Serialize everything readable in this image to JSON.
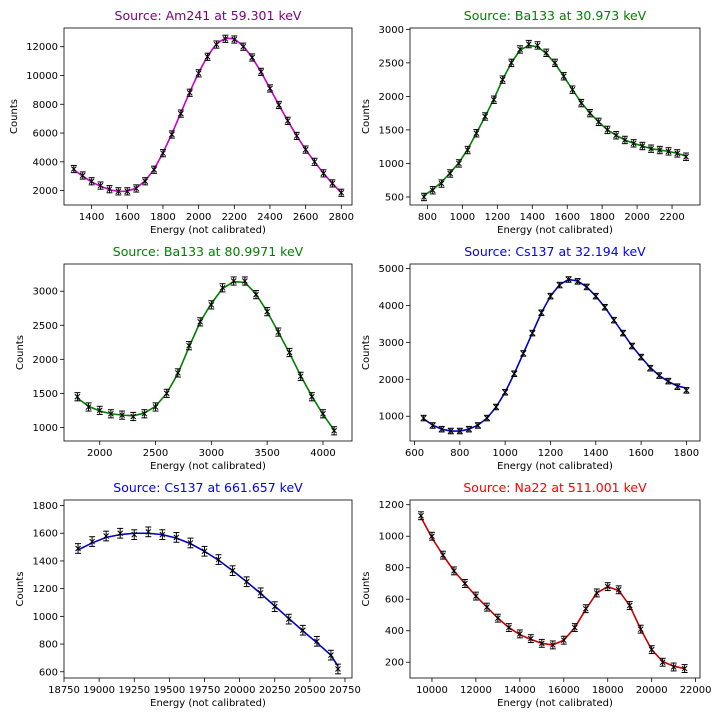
{
  "chart_data": [
    {
      "type": "scatter",
      "title": "Source: Am241 at 59.301 keV",
      "title_color": "#800080",
      "fit_color": "#cc00cc",
      "xlabel": "Energy (not calibrated)",
      "ylabel": "Counts",
      "xlim": [
        1245,
        2860
      ],
      "ylim": [
        1000,
        13300
      ],
      "xticks": [
        1400,
        1600,
        1800,
        2000,
        2200,
        2400,
        2600,
        2800
      ],
      "yticks": [
        2000,
        4000,
        6000,
        8000,
        10000,
        12000
      ],
      "series": [
        {
          "kind": "data-with-errorbars",
          "color": "#000000",
          "x": [
            1300,
            1350,
            1400,
            1450,
            1500,
            1550,
            1600,
            1650,
            1700,
            1750,
            1800,
            1850,
            1900,
            1950,
            2000,
            2050,
            2100,
            2150,
            2200,
            2250,
            2300,
            2350,
            2400,
            2450,
            2500,
            2550,
            2600,
            2650,
            2700,
            2750,
            2800
          ],
          "y": [
            3500,
            3050,
            2650,
            2350,
            2100,
            1950,
            1950,
            2150,
            2650,
            3450,
            4600,
            5900,
            7350,
            8800,
            10150,
            11300,
            12150,
            12550,
            12500,
            12000,
            11250,
            10250,
            9100,
            7950,
            6850,
            5800,
            4850,
            4000,
            3200,
            2500,
            1850
          ],
          "yerr": 250
        },
        {
          "kind": "fit",
          "color": "#cc00cc",
          "x": [
            1300,
            1350,
            1400,
            1450,
            1500,
            1550,
            1600,
            1650,
            1700,
            1750,
            1800,
            1850,
            1900,
            1950,
            2000,
            2050,
            2100,
            2150,
            2200,
            2250,
            2300,
            2350,
            2400,
            2450,
            2500,
            2550,
            2600,
            2650,
            2700,
            2750,
            2800
          ],
          "y": [
            3450,
            3000,
            2600,
            2300,
            2070,
            1940,
            1960,
            2180,
            2680,
            3480,
            4620,
            5950,
            7400,
            8850,
            10200,
            11350,
            12200,
            12600,
            12550,
            12050,
            11250,
            10250,
            9100,
            7950,
            6850,
            5800,
            4850,
            4000,
            3200,
            2500,
            1850
          ]
        }
      ]
    },
    {
      "type": "scatter",
      "title": "Source: Ba133 at 30.973 keV",
      "title_color": "#008000",
      "fit_color": "#008000",
      "xlabel": "Energy (not calibrated)",
      "ylabel": "Counts",
      "xlim": [
        700,
        2360
      ],
      "ylim": [
        380,
        3020
      ],
      "xticks": [
        800,
        1000,
        1200,
        1400,
        1600,
        1800,
        2000,
        2200
      ],
      "yticks": [
        500,
        1000,
        1500,
        2000,
        2500,
        3000
      ],
      "series": [
        {
          "kind": "data-with-errorbars",
          "color": "#000000",
          "x": [
            780,
            830,
            880,
            930,
            980,
            1030,
            1080,
            1130,
            1180,
            1230,
            1280,
            1330,
            1380,
            1430,
            1480,
            1530,
            1580,
            1630,
            1680,
            1730,
            1780,
            1830,
            1880,
            1930,
            1980,
            2030,
            2080,
            2130,
            2180,
            2230,
            2280
          ],
          "y": [
            500,
            600,
            700,
            850,
            1000,
            1200,
            1450,
            1700,
            1950,
            2250,
            2500,
            2700,
            2780,
            2760,
            2650,
            2500,
            2300,
            2100,
            1900,
            1750,
            1620,
            1500,
            1420,
            1350,
            1300,
            1260,
            1220,
            1200,
            1180,
            1150,
            1100
          ],
          "yerr": 55
        },
        {
          "kind": "fit",
          "color": "#008000",
          "x": [
            780,
            830,
            880,
            930,
            980,
            1030,
            1080,
            1130,
            1180,
            1230,
            1280,
            1330,
            1380,
            1430,
            1480,
            1530,
            1580,
            1630,
            1680,
            1730,
            1780,
            1830,
            1880,
            1930,
            1980,
            2030,
            2080,
            2130,
            2180,
            2230,
            2280
          ],
          "y": [
            520,
            610,
            720,
            860,
            1010,
            1210,
            1450,
            1700,
            1960,
            2250,
            2500,
            2690,
            2760,
            2740,
            2640,
            2490,
            2300,
            2100,
            1910,
            1750,
            1620,
            1500,
            1420,
            1350,
            1300,
            1260,
            1220,
            1200,
            1180,
            1150,
            1110
          ]
        }
      ]
    },
    {
      "type": "scatter",
      "title": "Source: Ba133 at 80.9971 keV",
      "title_color": "#008000",
      "fit_color": "#008000",
      "xlabel": "Energy (not calibrated)",
      "ylabel": "Counts",
      "xlim": [
        1680,
        4260
      ],
      "ylim": [
        800,
        3400
      ],
      "xticks": [
        2000,
        2500,
        3000,
        3500,
        4000
      ],
      "yticks": [
        1000,
        1500,
        2000,
        2500,
        3000
      ],
      "series": [
        {
          "kind": "data-with-errorbars",
          "color": "#000000",
          "x": [
            1800,
            1900,
            2000,
            2100,
            2200,
            2300,
            2400,
            2500,
            2600,
            2700,
            2800,
            2900,
            3000,
            3100,
            3200,
            3300,
            3400,
            3500,
            3600,
            3700,
            3800,
            3900,
            4000,
            4100
          ],
          "y": [
            1450,
            1300,
            1250,
            1200,
            1180,
            1160,
            1200,
            1300,
            1500,
            1800,
            2200,
            2550,
            2800,
            3050,
            3150,
            3150,
            2950,
            2700,
            2400,
            2100,
            1750,
            1450,
            1200,
            950
          ],
          "yerr": 60
        },
        {
          "kind": "fit",
          "color": "#008000",
          "x": [
            1800,
            1900,
            2000,
            2100,
            2200,
            2300,
            2400,
            2500,
            2600,
            2700,
            2800,
            2900,
            3000,
            3100,
            3200,
            3300,
            3400,
            3500,
            3600,
            3700,
            3800,
            3900,
            4000,
            4100
          ],
          "y": [
            1430,
            1310,
            1240,
            1200,
            1180,
            1170,
            1210,
            1310,
            1500,
            1790,
            2180,
            2550,
            2820,
            3040,
            3140,
            3130,
            2960,
            2700,
            2400,
            2090,
            1760,
            1460,
            1190,
            960
          ]
        }
      ]
    },
    {
      "type": "scatter",
      "title": "Source: Cs137 at 32.194 keV",
      "title_color": "#0000ff",
      "fit_color": "#0000cc",
      "xlabel": "Energy (not calibrated)",
      "ylabel": "Counts",
      "xlim": [
        580,
        1860
      ],
      "ylim": [
        330,
        5120
      ],
      "xticks": [
        600,
        800,
        1000,
        1200,
        1400,
        1600,
        1800
      ],
      "yticks": [
        1000,
        2000,
        3000,
        4000,
        5000
      ],
      "series": [
        {
          "kind": "data-with-errorbars",
          "color": "#000000",
          "x": [
            640,
            680,
            720,
            760,
            800,
            840,
            880,
            920,
            960,
            1000,
            1040,
            1080,
            1120,
            1160,
            1200,
            1240,
            1280,
            1320,
            1360,
            1400,
            1440,
            1480,
            1520,
            1560,
            1600,
            1640,
            1680,
            1720,
            1760,
            1800
          ],
          "y": [
            950,
            750,
            650,
            600,
            600,
            650,
            750,
            950,
            1250,
            1650,
            2150,
            2700,
            3250,
            3800,
            4250,
            4550,
            4700,
            4650,
            4500,
            4250,
            3950,
            3600,
            3250,
            2900,
            2600,
            2300,
            2100,
            1950,
            1800,
            1700
          ],
          "yerr": 75
        },
        {
          "kind": "fit",
          "color": "#0000cc",
          "x": [
            640,
            680,
            720,
            760,
            800,
            840,
            880,
            920,
            960,
            1000,
            1040,
            1080,
            1120,
            1160,
            1200,
            1240,
            1280,
            1320,
            1360,
            1400,
            1440,
            1480,
            1520,
            1560,
            1600,
            1640,
            1680,
            1720,
            1760,
            1800
          ],
          "y": [
            930,
            760,
            650,
            600,
            600,
            650,
            760,
            950,
            1250,
            1650,
            2150,
            2700,
            3250,
            3800,
            4250,
            4560,
            4700,
            4660,
            4500,
            4250,
            3950,
            3600,
            3250,
            2900,
            2600,
            2320,
            2100,
            1940,
            1820,
            1760
          ]
        }
      ]
    },
    {
      "type": "scatter",
      "title": "Source: Cs137 at 661.657 keV",
      "title_color": "#0000ff",
      "fit_color": "#0000cc",
      "xlabel": "Energy (not calibrated)",
      "ylabel": "Counts",
      "xlim": [
        18750,
        20800
      ],
      "ylim": [
        555,
        1840
      ],
      "xticks": [
        18750,
        19000,
        19250,
        19500,
        19750,
        20000,
        20250,
        20500,
        20750
      ],
      "yticks": [
        600,
        800,
        1000,
        1200,
        1400,
        1600,
        1800
      ],
      "series": [
        {
          "kind": "data-with-errorbars",
          "color": "#000000",
          "x": [
            18850,
            18950,
            19050,
            19150,
            19250,
            19350,
            19450,
            19550,
            19650,
            19750,
            19850,
            19950,
            20050,
            20150,
            20250,
            20350,
            20450,
            20550,
            20650,
            20700
          ],
          "y": [
            1490,
            1540,
            1580,
            1600,
            1590,
            1610,
            1590,
            1570,
            1530,
            1470,
            1410,
            1330,
            1250,
            1170,
            1070,
            980,
            900,
            820,
            720,
            620
          ],
          "yerr": 35
        },
        {
          "kind": "fit",
          "color": "#0000cc",
          "x": [
            18850,
            18950,
            19050,
            19150,
            19250,
            19350,
            19450,
            19550,
            19650,
            19750,
            19850,
            19950,
            20050,
            20150,
            20250,
            20350,
            20450,
            20550,
            20650,
            20700
          ],
          "y": [
            1480,
            1530,
            1570,
            1590,
            1600,
            1600,
            1590,
            1565,
            1525,
            1470,
            1405,
            1330,
            1250,
            1165,
            1075,
            985,
            895,
            810,
            720,
            640
          ]
        }
      ]
    },
    {
      "type": "scatter",
      "title": "Source: Na22 at 511.001 keV",
      "title_color": "#ff0000",
      "fit_color": "#cc0000",
      "xlabel": "Energy (not calibrated)",
      "ylabel": "Counts",
      "xlim": [
        9000,
        22200
      ],
      "ylim": [
        100,
        1230
      ],
      "xticks": [
        10000,
        12000,
        14000,
        16000,
        18000,
        20000,
        22000
      ],
      "yticks": [
        200,
        400,
        600,
        800,
        1000,
        1200
      ],
      "series": [
        {
          "kind": "data-with-errorbars",
          "color": "#000000",
          "x": [
            9500,
            10000,
            10500,
            11000,
            11500,
            12000,
            12500,
            13000,
            13500,
            14000,
            14500,
            15000,
            15500,
            16000,
            16500,
            17000,
            17500,
            18000,
            18500,
            19000,
            19500,
            20000,
            20500,
            21000,
            21500
          ],
          "y": [
            1130,
            1000,
            880,
            780,
            700,
            620,
            550,
            480,
            420,
            380,
            350,
            320,
            310,
            340,
            420,
            540,
            640,
            680,
            660,
            560,
            410,
            280,
            200,
            170,
            160
          ],
          "yerr": 25
        },
        {
          "kind": "fit",
          "color": "#cc0000",
          "x": [
            9500,
            10000,
            10500,
            11000,
            11500,
            12000,
            12500,
            13000,
            13500,
            14000,
            14500,
            15000,
            15500,
            16000,
            16500,
            17000,
            17500,
            18000,
            18500,
            19000,
            19500,
            20000,
            20500,
            21000,
            21500
          ],
          "y": [
            1120,
            990,
            880,
            780,
            700,
            620,
            550,
            480,
            420,
            375,
            345,
            320,
            310,
            340,
            420,
            535,
            640,
            680,
            655,
            560,
            410,
            280,
            205,
            175,
            160
          ]
        }
      ]
    }
  ]
}
